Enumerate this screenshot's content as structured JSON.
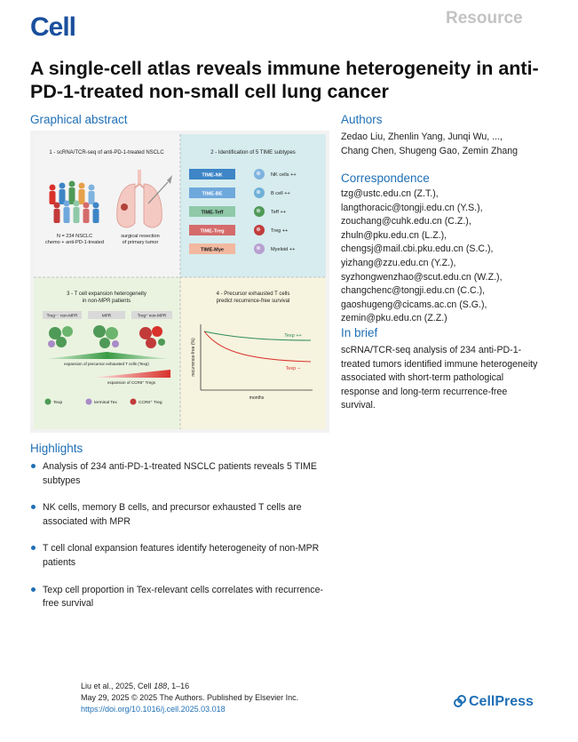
{
  "header": {
    "journal_logo": "Cell",
    "article_type": "Resource",
    "title": "A single-cell atlas reveals immune heterogeneity in anti-PD-1-treated non-small cell lung cancer"
  },
  "graphical_abstract": {
    "heading": "Graphical abstract",
    "panel1": {
      "title": "1 - scRNA/TCR-seq of anti-PD-1-treated NSCLC",
      "cohort_line1": "N = 234 NSCLC",
      "cohort_line2": "chemo + anti-PD-1-treated",
      "resection_line1": "surgical resection",
      "resection_line2": "of primary tumor"
    },
    "panel2": {
      "title": "2 - Identification of 5 TIME subtypes",
      "subtypes": [
        {
          "label": "TIME-NK",
          "cell": "NK cells ++",
          "box_color": "#3d85c6",
          "text_color": "#ffffff",
          "cell_color": "#7fb3df"
        },
        {
          "label": "TIME-BE",
          "cell": "B cell ++",
          "box_color": "#6fa8dc",
          "text_color": "#ffffff",
          "cell_color": "#6fb0d8"
        },
        {
          "label": "TIME-Teff",
          "cell": "Teff ++",
          "box_color": "#8fc9a8",
          "text_color": "#1a1a1a",
          "cell_color": "#4f9a57"
        },
        {
          "label": "TIME-Treg",
          "cell": "Treg ++",
          "box_color": "#d56b6b",
          "text_color": "#ffffff",
          "cell_color": "#c23b3b"
        },
        {
          "label": "TIME-Mye",
          "cell": "Myeloid ++",
          "box_color": "#f2b8a0",
          "text_color": "#1a1a1a",
          "cell_color": "#b79fd0"
        }
      ]
    },
    "panel3": {
      "title_line1": "3 - T cell expansion heterogeneity",
      "title_line2": "in non-MPR patients",
      "groups": [
        "Treg⁻⁻ non-MPR",
        "MPR",
        "Treg⁺ non-MPR"
      ],
      "gradient1": "expansion of precursor exhausted T cells (Texp)",
      "gradient2": "expansion of CCR8⁺ Tregs",
      "legend": [
        {
          "label": "Texp",
          "color": "#4f9a57"
        },
        {
          "label": "terminal Tex",
          "color": "#a98bc7"
        },
        {
          "label": "CCR8⁺ Treg",
          "color": "#c23b3b"
        }
      ]
    },
    "panel4": {
      "title_line1": "4 - Precursor exhausted T cells",
      "title_line2": "predict recurrence-free survival",
      "ylabel": "recurrence-free (%)",
      "xlabel": "months",
      "series": [
        {
          "label": "Texp ++",
          "color": "#2e8b57"
        },
        {
          "label": "Texp --",
          "color": "#d9312b"
        }
      ]
    }
  },
  "authors": {
    "heading": "Authors",
    "line1": "Zedao Liu, Zhenlin Yang, Junqi Wu, ...,",
    "line2": "Chang Chen, Shugeng Gao, Zemin Zhang"
  },
  "correspondence": {
    "heading": "Correspondence",
    "emails": [
      "tzg@ustc.edu.cn (Z.T.),",
      "langthoracic@tongji.edu.cn (Y.S.),",
      "zouchang@cuhk.edu.cn (C.Z.),",
      "zhuln@pku.edu.cn (L.Z.),",
      "chengsj@mail.cbi.pku.edu.cn (S.C.),",
      "yizhang@zzu.edu.cn (Y.Z.),",
      "syzhongwenzhao@scut.edu.cn (W.Z.),",
      "changchenc@tongji.edu.cn (C.C.),",
      "gaoshugeng@cicams.ac.cn (S.G.),",
      "zemin@pku.edu.cn (Z.Z.)"
    ]
  },
  "in_brief": {
    "heading": "In brief",
    "text": "scRNA/TCR-seq analysis of 234 anti-PD-1-treated tumors identified immune heterogeneity associated with short-term pathological response and long-term recurrence-free survival."
  },
  "highlights": {
    "heading": "Highlights",
    "items": [
      "Analysis of 234 anti-PD-1-treated NSCLC patients reveals 5 TIME subtypes",
      "NK cells, memory B cells, and precursor exhausted T cells are associated with MPR",
      "T cell clonal expansion features identify heterogeneity of non-MPR patients",
      "Texp cell proportion in Tex-relevant cells correlates with recurrence-free survival"
    ]
  },
  "citation": {
    "line1_pre": "Liu et al., 2025, Cell ",
    "volume": "188",
    "line1_post": ", 1–16",
    "line2": "May 29, 2025 © 2025 The Authors. Published by Elsevier Inc.",
    "doi": "https://doi.org/10.1016/j.cell.2025.03.018"
  },
  "footer": {
    "publisher": "CellPress"
  },
  "colors": {
    "accent": "#1f6fb5",
    "logo": "#1a4f9c",
    "resource_label": "#c3c3c3"
  }
}
